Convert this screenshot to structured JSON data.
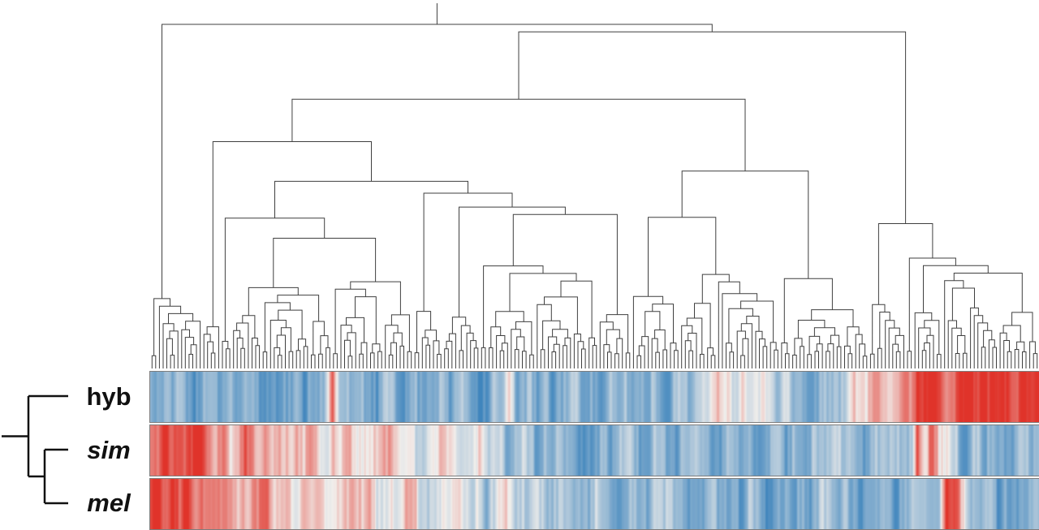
{
  "chart_data": {
    "type": "heatmap",
    "title": "",
    "description": "Hierarchical clustering dendrogram over gene columns with a three-row expression heatmap beneath (rows: hyb, sim, mel). Left-side mini dendrogram clusters the rows.",
    "legend_position": "none",
    "grid": false,
    "value_range": [
      -1,
      1
    ],
    "colormap": {
      "negative": "#3f85bd",
      "mid": "#f2efec",
      "positive": "#e0332a",
      "meaning": "blue = low, red = high"
    },
    "dendrogram": {
      "leaves": 240,
      "seed": 1234,
      "first_split_fraction": 0.06,
      "line_color": "#3f3f3f"
    },
    "row_tree": {
      "topology": "(hyb,(sim,mel))",
      "line_color": "#111111"
    },
    "rows": [
      {
        "id": "hyb",
        "label": "hyb",
        "italic": false,
        "seed": 11,
        "profile": [
          [
            0.0,
            -0.62
          ],
          [
            0.195,
            -0.62
          ],
          [
            0.205,
            0.55
          ],
          [
            0.212,
            -0.55
          ],
          [
            0.3,
            -0.62
          ],
          [
            0.395,
            -0.58
          ],
          [
            0.405,
            0.15
          ],
          [
            0.413,
            -0.55
          ],
          [
            0.5,
            -0.6
          ],
          [
            0.58,
            -0.55
          ],
          [
            0.615,
            -0.3
          ],
          [
            0.64,
            0.05
          ],
          [
            0.665,
            -0.15
          ],
          [
            0.69,
            0.1
          ],
          [
            0.715,
            -0.35
          ],
          [
            0.74,
            -0.55
          ],
          [
            0.775,
            -0.45
          ],
          [
            0.79,
            0.25
          ],
          [
            0.805,
            -0.2
          ],
          [
            0.82,
            0.45
          ],
          [
            0.835,
            0.1
          ],
          [
            0.85,
            0.65
          ],
          [
            0.865,
            0.9
          ],
          [
            0.9,
            0.85
          ],
          [
            0.94,
            0.95
          ],
          [
            1.0,
            0.95
          ]
        ]
      },
      {
        "id": "sim",
        "label": "sim",
        "italic": true,
        "seed": 23,
        "profile": [
          [
            0.0,
            0.95
          ],
          [
            0.055,
            0.95
          ],
          [
            0.065,
            0.35
          ],
          [
            0.075,
            0.7
          ],
          [
            0.09,
            0.25
          ],
          [
            0.105,
            0.6
          ],
          [
            0.12,
            0.15
          ],
          [
            0.14,
            0.5
          ],
          [
            0.16,
            0.05
          ],
          [
            0.18,
            0.45
          ],
          [
            0.2,
            0.0
          ],
          [
            0.22,
            0.35
          ],
          [
            0.245,
            -0.15
          ],
          [
            0.27,
            0.2
          ],
          [
            0.3,
            -0.3
          ],
          [
            0.325,
            0.1
          ],
          [
            0.35,
            -0.35
          ],
          [
            0.375,
            0.05
          ],
          [
            0.4,
            -0.45
          ],
          [
            0.45,
            -0.55
          ],
          [
            0.52,
            -0.5
          ],
          [
            0.6,
            -0.58
          ],
          [
            0.68,
            -0.55
          ],
          [
            0.76,
            -0.58
          ],
          [
            0.83,
            -0.52
          ],
          [
            0.857,
            -0.5
          ],
          [
            0.863,
            0.7
          ],
          [
            0.872,
            0.2
          ],
          [
            0.881,
            0.75
          ],
          [
            0.895,
            -0.2
          ],
          [
            0.92,
            -0.55
          ],
          [
            0.96,
            -0.5
          ],
          [
            1.0,
            -0.45
          ]
        ]
      },
      {
        "id": "mel",
        "label": "mel",
        "italic": true,
        "seed": 37,
        "profile": [
          [
            0.0,
            0.95
          ],
          [
            0.045,
            0.95
          ],
          [
            0.055,
            0.3
          ],
          [
            0.07,
            0.6
          ],
          [
            0.09,
            0.4
          ],
          [
            0.11,
            0.15
          ],
          [
            0.13,
            0.45
          ],
          [
            0.155,
            0.05
          ],
          [
            0.18,
            0.35
          ],
          [
            0.205,
            0.0
          ],
          [
            0.23,
            0.3
          ],
          [
            0.26,
            -0.1
          ],
          [
            0.29,
            0.2
          ],
          [
            0.32,
            -0.2
          ],
          [
            0.35,
            0.1
          ],
          [
            0.38,
            -0.3
          ],
          [
            0.41,
            -0.05
          ],
          [
            0.44,
            -0.4
          ],
          [
            0.48,
            -0.5
          ],
          [
            0.56,
            -0.55
          ],
          [
            0.64,
            -0.58
          ],
          [
            0.72,
            -0.55
          ],
          [
            0.8,
            -0.58
          ],
          [
            0.875,
            -0.52
          ],
          [
            0.888,
            -0.45
          ],
          [
            0.896,
            0.8
          ],
          [
            0.908,
            0.85
          ],
          [
            0.918,
            -0.3
          ],
          [
            0.95,
            -0.55
          ],
          [
            1.0,
            -0.5
          ]
        ]
      }
    ]
  }
}
